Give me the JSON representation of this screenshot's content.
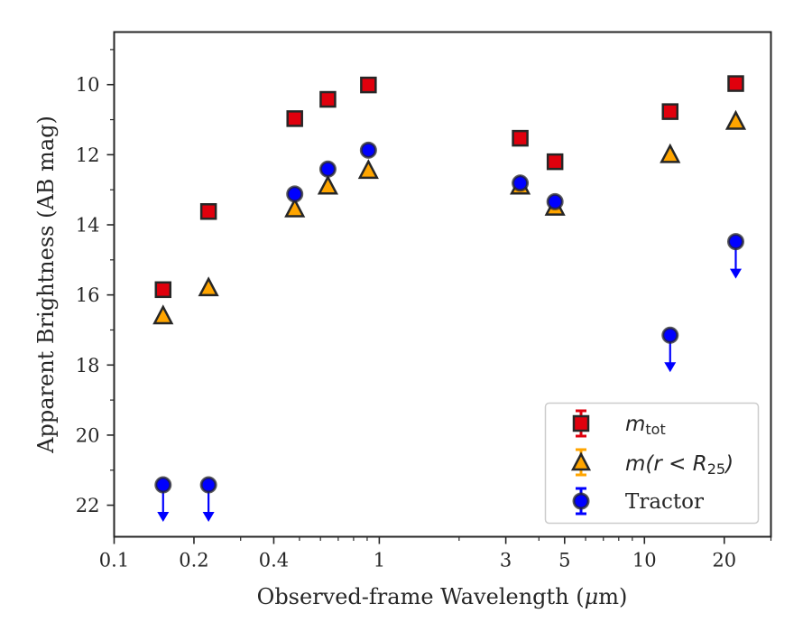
{
  "chart_data": {
    "type": "scatter",
    "xlabel_prefix": "Observed-frame Wavelength (",
    "xlabel_mu": "μ",
    "xlabel_suffix": "m)",
    "ylabel": "Apparent Brightness (AB mag)",
    "x_scale": "log",
    "xlim": [
      0.1,
      30
    ],
    "ylim": [
      22.9,
      8.5
    ],
    "y_inverted": true,
    "x_ticks": [
      0.1,
      0.2,
      0.4,
      1,
      3,
      5,
      10,
      20
    ],
    "x_tick_labels": [
      "0.1",
      "0.2",
      "0.4",
      "1",
      "3",
      "5",
      "10",
      "20"
    ],
    "y_ticks": [
      10,
      12,
      14,
      16,
      18,
      20,
      22
    ],
    "y_tick_labels": [
      "10",
      "12",
      "14",
      "16",
      "18",
      "20",
      "22"
    ],
    "grid": false,
    "legend_position": "lower-right",
    "legend": [
      {
        "name": "m",
        "subscript": "tot",
        "marker": "square"
      },
      {
        "name": "m(r < R",
        "subscript": "25",
        "suffix": ")",
        "marker": "triangle"
      },
      {
        "name": "Tractor",
        "marker": "circle"
      }
    ],
    "series": [
      {
        "name": "m_tot",
        "marker": "square",
        "color": "#e0000d",
        "points": [
          {
            "x": 0.153,
            "y": 15.85
          },
          {
            "x": 0.227,
            "y": 13.62
          },
          {
            "x": 0.48,
            "y": 10.97
          },
          {
            "x": 0.64,
            "y": 10.42
          },
          {
            "x": 0.91,
            "y": 10.01
          },
          {
            "x": 3.4,
            "y": 11.53
          },
          {
            "x": 4.6,
            "y": 12.2
          },
          {
            "x": 12.5,
            "y": 10.77
          },
          {
            "x": 22.1,
            "y": 9.97
          }
        ]
      },
      {
        "name": "m(r<R25)",
        "marker": "triangle",
        "color": "#ffa500",
        "points": [
          {
            "x": 0.153,
            "y": 16.6
          },
          {
            "x": 0.227,
            "y": 15.8
          },
          {
            "x": 0.48,
            "y": 13.55
          },
          {
            "x": 0.64,
            "y": 12.9
          },
          {
            "x": 0.91,
            "y": 12.45
          },
          {
            "x": 3.4,
            "y": 12.9
          },
          {
            "x": 4.6,
            "y": 13.5
          },
          {
            "x": 12.5,
            "y": 12.0
          },
          {
            "x": 22.1,
            "y": 11.05
          }
        ]
      },
      {
        "name": "Tractor",
        "marker": "circle",
        "color": "#0000ff",
        "points": [
          {
            "x": 0.153,
            "y": 21.42,
            "upper_limit": true
          },
          {
            "x": 0.227,
            "y": 21.42,
            "upper_limit": true
          },
          {
            "x": 0.48,
            "y": 13.12
          },
          {
            "x": 0.64,
            "y": 12.41
          },
          {
            "x": 0.91,
            "y": 11.87
          },
          {
            "x": 3.4,
            "y": 12.81
          },
          {
            "x": 4.6,
            "y": 13.34
          },
          {
            "x": 12.5,
            "y": 17.15,
            "upper_limit": true
          },
          {
            "x": 22.1,
            "y": 14.48,
            "upper_limit": true
          }
        ]
      }
    ]
  }
}
